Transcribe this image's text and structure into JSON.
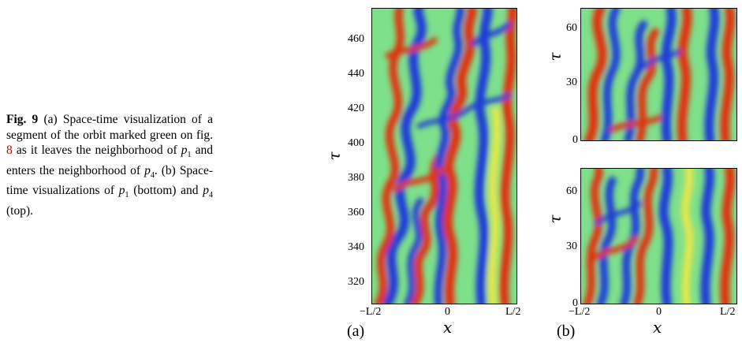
{
  "caption": {
    "fig": "Fig. 9",
    "t1": " (a) Space-time visualization of a segment of the orbit marked green on fig. ",
    "ref": "8",
    "t2": " as it leaves the neighborhood of ",
    "p1": "p",
    "p1sub": "1",
    "t3": " and enters the neighborhood of ",
    "p4": "p",
    "p4sub": "4",
    "t4": ". (b) Space-time visualizations of ",
    "p1b": "p",
    "p1bsub": "1",
    "t5": " (bottom) and ",
    "p4b": "p",
    "p4bsub": "4",
    "t6": " (top)."
  },
  "panel_a": {
    "label": "(a)",
    "ylabel": "τ",
    "xlabel": "x",
    "yticks": [
      "460",
      "440",
      "420",
      "400",
      "380",
      "360",
      "340",
      "320"
    ],
    "xticks": [
      "−L/2",
      "0",
      "L/2"
    ]
  },
  "panel_b_top": {
    "ylabel": "τ",
    "yticks": [
      "60",
      "30",
      "0"
    ]
  },
  "panel_b_bottom": {
    "ylabel": "τ",
    "yticks": [
      "60",
      "30",
      "0"
    ],
    "xticks": [
      "−L/2",
      "0",
      "L/2"
    ],
    "xlabel": "x",
    "label": "(b)"
  },
  "colors": {
    "red": "#e03010",
    "blue": "#1a3ad8",
    "green": "#7ee08a",
    "yellow": "#e6e84a",
    "cyan": "#34b8e8"
  }
}
